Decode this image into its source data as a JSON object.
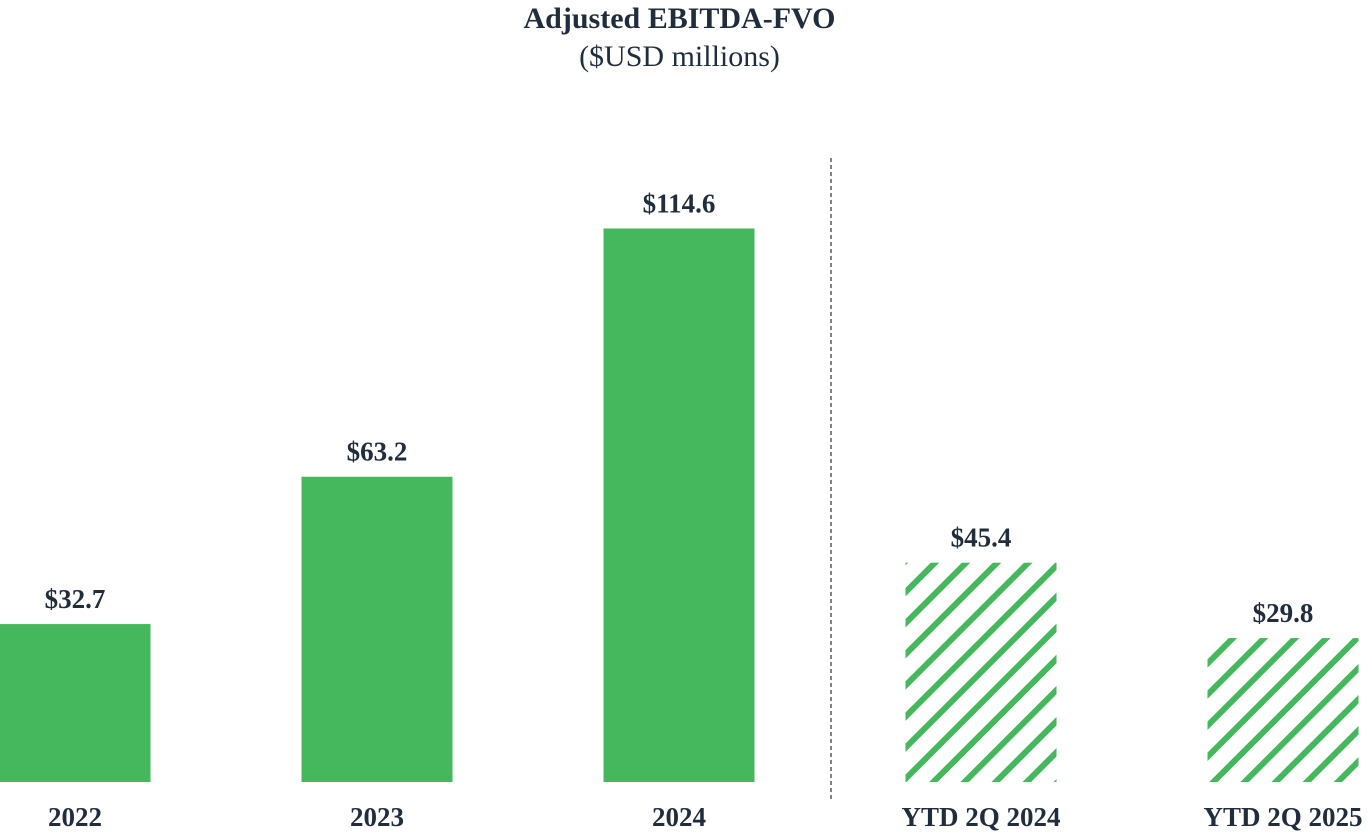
{
  "chart_data": {
    "type": "bar",
    "title": "Adjusted EBITDA-FVO",
    "subtitle": "($USD millions)",
    "xlabel": "",
    "ylabel": "",
    "ylim": [
      0,
      125
    ],
    "grid": false,
    "legend": "none",
    "categories": [
      "2022",
      "2023",
      "2024",
      "YTD 2Q 2024",
      "YTD 2Q 2025"
    ],
    "values": [
      32.7,
      63.2,
      114.6,
      45.4,
      29.8
    ],
    "data_labels": [
      "$32.7",
      "$63.2",
      "$114.6",
      "$45.4",
      "$29.8"
    ],
    "fill_styles": [
      "solid",
      "solid",
      "solid",
      "hatched",
      "hatched"
    ],
    "divider_after_category": "2024",
    "colors": {
      "bar": "#45b85e",
      "text": "#1f2d3d",
      "divider": "#5a5a5a"
    }
  }
}
